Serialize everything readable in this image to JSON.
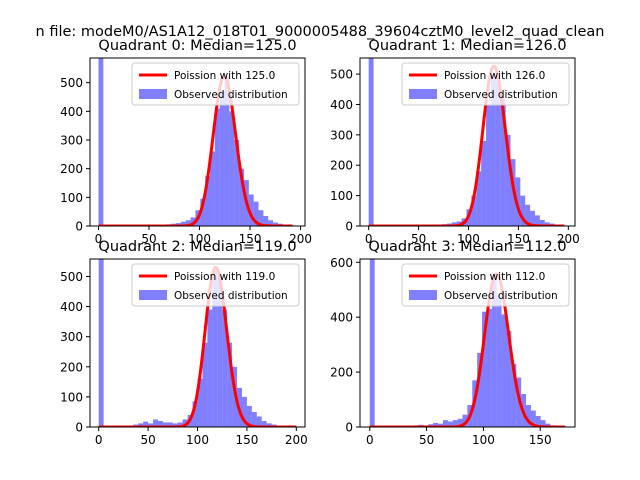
{
  "suptitle": "n file: modeM0/AS1A12_018T01_9000005488_39604cztM0_level2_quad_clean",
  "colors": {
    "hist": "#0000ff",
    "hist_alpha": 0.5,
    "poisson": "#ff0000",
    "axes": "#000000"
  },
  "chart_data": [
    {
      "type": "bar",
      "title": "Quadrant 0: Median=125.0",
      "xlabel": "",
      "ylabel": "",
      "xlim": [
        -8.4,
        204.4
      ],
      "ylim": [
        0,
        586
      ],
      "xticks": [
        0,
        50,
        100,
        150,
        200
      ],
      "yticks": [
        0,
        100,
        200,
        300,
        400,
        500
      ],
      "bins": [
        {
          "x0": 0,
          "x1": 4.8,
          "value": 586
        },
        {
          "x0": 48,
          "x1": 52.8,
          "value": 2
        },
        {
          "x0": 52.8,
          "x1": 57.6,
          "value": 3
        },
        {
          "x0": 57.6,
          "x1": 62.4,
          "value": 3
        },
        {
          "x0": 62.4,
          "x1": 67.2,
          "value": 5
        },
        {
          "x0": 67.2,
          "x1": 72,
          "value": 6
        },
        {
          "x0": 72,
          "x1": 76.8,
          "value": 8
        },
        {
          "x0": 76.8,
          "x1": 81.6,
          "value": 10
        },
        {
          "x0": 81.6,
          "x1": 86.4,
          "value": 15
        },
        {
          "x0": 86.4,
          "x1": 91.2,
          "value": 20
        },
        {
          "x0": 91.2,
          "x1": 96,
          "value": 30
        },
        {
          "x0": 96,
          "x1": 100.8,
          "value": 55
        },
        {
          "x0": 100.8,
          "x1": 105.6,
          "value": 95
        },
        {
          "x0": 105.6,
          "x1": 110.4,
          "value": 175
        },
        {
          "x0": 110.4,
          "x1": 115.2,
          "value": 260
        },
        {
          "x0": 115.2,
          "x1": 120,
          "value": 410
        },
        {
          "x0": 120,
          "x1": 124.8,
          "value": 470
        },
        {
          "x0": 124.8,
          "x1": 129.6,
          "value": 520
        },
        {
          "x0": 129.6,
          "x1": 134.4,
          "value": 400
        },
        {
          "x0": 134.4,
          "x1": 139.2,
          "value": 300
        },
        {
          "x0": 139.2,
          "x1": 144,
          "value": 200
        },
        {
          "x0": 144,
          "x1": 148.8,
          "value": 160
        },
        {
          "x0": 148.8,
          "x1": 153.6,
          "value": 110
        },
        {
          "x0": 153.6,
          "x1": 158.4,
          "value": 85
        },
        {
          "x0": 158.4,
          "x1": 163.2,
          "value": 55
        },
        {
          "x0": 163.2,
          "x1": 168,
          "value": 35
        },
        {
          "x0": 168,
          "x1": 172.8,
          "value": 20
        },
        {
          "x0": 172.8,
          "x1": 177.6,
          "value": 12
        },
        {
          "x0": 177.6,
          "x1": 182.4,
          "value": 8
        },
        {
          "x0": 182.4,
          "x1": 187.2,
          "value": 5
        },
        {
          "x0": 187.2,
          "x1": 192,
          "value": 3
        }
      ],
      "poisson": {
        "label": "Poission with 125.0",
        "mean": 125.0,
        "peak": 521,
        "x_range": [
          0,
          192
        ]
      },
      "legend": {
        "location": "upper right",
        "entries": [
          "Poission with 125.0",
          "Observed distribution"
        ]
      }
    },
    {
      "type": "bar",
      "title": "Quadrant 1: Median=126.0",
      "xlabel": "",
      "ylabel": "",
      "xlim": [
        -8.7,
        206.7
      ],
      "ylim": [
        0,
        553
      ],
      "xticks": [
        0,
        50,
        100,
        150,
        200
      ],
      "yticks": [
        0,
        100,
        200,
        300,
        400,
        500
      ],
      "bins": [
        {
          "x0": 0,
          "x1": 4.9,
          "value": 553
        },
        {
          "x0": 49,
          "x1": 53.9,
          "value": 2
        },
        {
          "x0": 53.9,
          "x1": 58.8,
          "value": 3
        },
        {
          "x0": 58.8,
          "x1": 63.7,
          "value": 3
        },
        {
          "x0": 63.7,
          "x1": 68.6,
          "value": 4
        },
        {
          "x0": 68.6,
          "x1": 73.5,
          "value": 5
        },
        {
          "x0": 73.5,
          "x1": 78.4,
          "value": 6
        },
        {
          "x0": 78.4,
          "x1": 83.3,
          "value": 8
        },
        {
          "x0": 83.3,
          "x1": 88.2,
          "value": 12
        },
        {
          "x0": 88.2,
          "x1": 93.1,
          "value": 15
        },
        {
          "x0": 93.1,
          "x1": 98,
          "value": 25
        },
        {
          "x0": 98,
          "x1": 102.9,
          "value": 55
        },
        {
          "x0": 102.9,
          "x1": 107.8,
          "value": 100
        },
        {
          "x0": 107.8,
          "x1": 112.7,
          "value": 180
        },
        {
          "x0": 112.7,
          "x1": 117.6,
          "value": 280
        },
        {
          "x0": 117.6,
          "x1": 122.5,
          "value": 400
        },
        {
          "x0": 122.5,
          "x1": 127.4,
          "value": 500
        },
        {
          "x0": 127.4,
          "x1": 132.3,
          "value": 480
        },
        {
          "x0": 132.3,
          "x1": 137.2,
          "value": 420
        },
        {
          "x0": 137.2,
          "x1": 142.1,
          "value": 300
        },
        {
          "x0": 142.1,
          "x1": 147,
          "value": 220
        },
        {
          "x0": 147,
          "x1": 151.9,
          "value": 160
        },
        {
          "x0": 151.9,
          "x1": 156.8,
          "value": 100
        },
        {
          "x0": 156.8,
          "x1": 161.7,
          "value": 70
        },
        {
          "x0": 161.7,
          "x1": 166.6,
          "value": 50
        },
        {
          "x0": 166.6,
          "x1": 171.5,
          "value": 35
        },
        {
          "x0": 171.5,
          "x1": 176.4,
          "value": 20
        },
        {
          "x0": 176.4,
          "x1": 181.3,
          "value": 12
        },
        {
          "x0": 181.3,
          "x1": 186.2,
          "value": 8
        },
        {
          "x0": 186.2,
          "x1": 191.1,
          "value": 4
        },
        {
          "x0": 191.1,
          "x1": 196,
          "value": 2
        }
      ],
      "poisson": {
        "label": "Poission with 126.0",
        "mean": 126.0,
        "peak": 526,
        "x_range": [
          0,
          196
        ]
      },
      "legend": {
        "location": "upper right",
        "entries": [
          "Poission with 126.0",
          "Observed distribution"
        ]
      }
    },
    {
      "type": "bar",
      "title": "Quadrant 2: Median=119.0",
      "xlabel": "",
      "ylabel": "",
      "xlim": [
        -8.8,
        208.8
      ],
      "ylim": [
        0,
        558
      ],
      "xticks": [
        0,
        50,
        100,
        150,
        200
      ],
      "yticks": [
        0,
        100,
        200,
        300,
        400,
        500
      ],
      "bins": [
        {
          "x0": 0,
          "x1": 5,
          "value": 558
        },
        {
          "x0": 30,
          "x1": 35,
          "value": 5
        },
        {
          "x0": 35,
          "x1": 40,
          "value": 8
        },
        {
          "x0": 40,
          "x1": 45,
          "value": 12
        },
        {
          "x0": 45,
          "x1": 50,
          "value": 18
        },
        {
          "x0": 50,
          "x1": 55,
          "value": 12
        },
        {
          "x0": 55,
          "x1": 60,
          "value": 25
        },
        {
          "x0": 60,
          "x1": 65,
          "value": 20
        },
        {
          "x0": 65,
          "x1": 70,
          "value": 15
        },
        {
          "x0": 70,
          "x1": 75,
          "value": 15
        },
        {
          "x0": 75,
          "x1": 80,
          "value": 12
        },
        {
          "x0": 80,
          "x1": 85,
          "value": 15
        },
        {
          "x0": 85,
          "x1": 90,
          "value": 25
        },
        {
          "x0": 90,
          "x1": 95,
          "value": 40
        },
        {
          "x0": 95,
          "x1": 100,
          "value": 85
        },
        {
          "x0": 100,
          "x1": 105,
          "value": 160
        },
        {
          "x0": 105,
          "x1": 110,
          "value": 280
        },
        {
          "x0": 110,
          "x1": 115,
          "value": 390
        },
        {
          "x0": 115,
          "x1": 120,
          "value": 520
        },
        {
          "x0": 120,
          "x1": 125,
          "value": 500
        },
        {
          "x0": 125,
          "x1": 130,
          "value": 390
        },
        {
          "x0": 130,
          "x1": 135,
          "value": 280
        },
        {
          "x0": 135,
          "x1": 140,
          "value": 200
        },
        {
          "x0": 140,
          "x1": 145,
          "value": 130
        },
        {
          "x0": 145,
          "x1": 150,
          "value": 100
        },
        {
          "x0": 150,
          "x1": 155,
          "value": 70
        },
        {
          "x0": 155,
          "x1": 160,
          "value": 50
        },
        {
          "x0": 160,
          "x1": 165,
          "value": 35
        },
        {
          "x0": 165,
          "x1": 170,
          "value": 20
        },
        {
          "x0": 170,
          "x1": 175,
          "value": 12
        },
        {
          "x0": 175,
          "x1": 180,
          "value": 8
        },
        {
          "x0": 180,
          "x1": 185,
          "value": 4
        },
        {
          "x0": 185,
          "x1": 190,
          "value": 3
        }
      ],
      "poisson": {
        "label": "Poission with 119.0",
        "mean": 119.0,
        "peak": 530,
        "x_range": [
          0,
          200
        ]
      },
      "legend": {
        "location": "upper right",
        "entries": [
          "Poission with 119.0",
          "Observed distribution"
        ]
      }
    },
    {
      "type": "bar",
      "title": "Quadrant 3: Median=112.0",
      "xlabel": "",
      "ylabel": "",
      "xlim": [
        -8.6,
        180.6
      ],
      "ylim": [
        0,
        612
      ],
      "xticks": [
        0,
        50,
        100,
        150
      ],
      "yticks": [
        0,
        200,
        400,
        600
      ],
      "bins": [
        {
          "x0": 0,
          "x1": 4.3,
          "value": 612
        },
        {
          "x0": 30,
          "x1": 34.3,
          "value": 3
        },
        {
          "x0": 34.3,
          "x1": 38.6,
          "value": 4
        },
        {
          "x0": 38.6,
          "x1": 42.9,
          "value": 6
        },
        {
          "x0": 42.9,
          "x1": 47.2,
          "value": 8
        },
        {
          "x0": 47.2,
          "x1": 51.5,
          "value": 6
        },
        {
          "x0": 51.5,
          "x1": 55.8,
          "value": 10
        },
        {
          "x0": 55.8,
          "x1": 60.1,
          "value": 15
        },
        {
          "x0": 60.1,
          "x1": 64.4,
          "value": 12
        },
        {
          "x0": 64.4,
          "x1": 68.7,
          "value": 25
        },
        {
          "x0": 68.7,
          "x1": 73,
          "value": 20
        },
        {
          "x0": 73,
          "x1": 77.3,
          "value": 25
        },
        {
          "x0": 77.3,
          "x1": 81.6,
          "value": 30
        },
        {
          "x0": 81.6,
          "x1": 85.9,
          "value": 45
        },
        {
          "x0": 85.9,
          "x1": 90.2,
          "value": 80
        },
        {
          "x0": 90.2,
          "x1": 94.5,
          "value": 170
        },
        {
          "x0": 94.5,
          "x1": 98.8,
          "value": 270
        },
        {
          "x0": 98.8,
          "x1": 103.1,
          "value": 420
        },
        {
          "x0": 103.1,
          "x1": 107.4,
          "value": 430
        },
        {
          "x0": 107.4,
          "x1": 111.7,
          "value": 560
        },
        {
          "x0": 111.7,
          "x1": 116,
          "value": 480
        },
        {
          "x0": 116,
          "x1": 120.3,
          "value": 410
        },
        {
          "x0": 120.3,
          "x1": 124.6,
          "value": 350
        },
        {
          "x0": 124.6,
          "x1": 128.9,
          "value": 230
        },
        {
          "x0": 128.9,
          "x1": 133.2,
          "value": 180
        },
        {
          "x0": 133.2,
          "x1": 137.5,
          "value": 120
        },
        {
          "x0": 137.5,
          "x1": 141.8,
          "value": 80
        },
        {
          "x0": 141.8,
          "x1": 146.1,
          "value": 60
        },
        {
          "x0": 146.1,
          "x1": 150.4,
          "value": 40
        },
        {
          "x0": 150.4,
          "x1": 154.7,
          "value": 25
        },
        {
          "x0": 154.7,
          "x1": 159,
          "value": 12
        },
        {
          "x0": 159,
          "x1": 163.3,
          "value": 6
        },
        {
          "x0": 163.3,
          "x1": 167.6,
          "value": 3
        },
        {
          "x0": 167.6,
          "x1": 172,
          "value": 2
        }
      ],
      "poisson": {
        "label": "Poission with 112.0",
        "mean": 112.0,
        "peak": 557,
        "x_range": [
          0,
          172
        ]
      },
      "legend": {
        "location": "upper right",
        "entries": [
          "Poission with 112.0",
          "Observed distribution"
        ]
      }
    }
  ]
}
